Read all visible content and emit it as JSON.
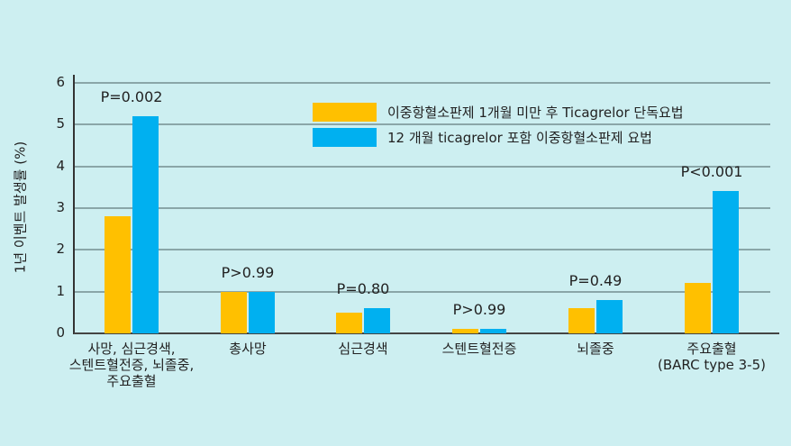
{
  "chart_data": {
    "type": "bar",
    "title": "",
    "xlabel": "",
    "ylabel": "1년 이벤트 발생률 (%)",
    "ylim": [
      0,
      6
    ],
    "yticks": [
      0,
      1,
      2,
      3,
      4,
      5,
      6
    ],
    "grid": true,
    "legend_position": "upper right (inside)",
    "categories": [
      "사망, 심근경색,\n스텐트혈전증, 뇌졸중,\n주요출혈",
      "총사망",
      "심근경색",
      "스텐트혈전증",
      "뇌졸중",
      "주요출혈\n(BARC type 3-5)"
    ],
    "series": [
      {
        "name": "이중항혈소판제 1개월 미만 후 Ticagrelor 단독요법",
        "color": "#ffc000",
        "values": [
          2.8,
          1.0,
          0.5,
          0.1,
          0.6,
          1.2
        ]
      },
      {
        "name": "12 개월 ticagrelor 포함 이중항혈소판제 요법",
        "color": "#00b0f0",
        "values": [
          5.2,
          1.0,
          0.6,
          0.1,
          0.8,
          3.4
        ]
      }
    ],
    "annotations": [
      "P=0.002",
      "P>0.99",
      "P=0.80",
      "P>0.99",
      "P=0.49",
      "P<0.001"
    ]
  },
  "background": "#cdeff1"
}
